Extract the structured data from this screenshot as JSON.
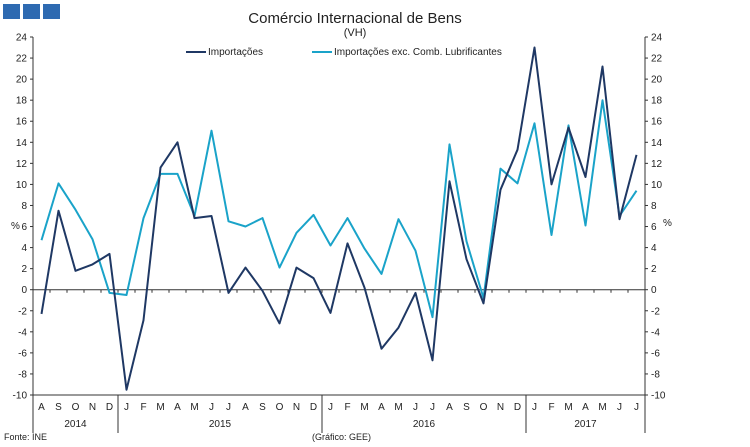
{
  "logo_color": "#2e6ab1",
  "chart_data": {
    "type": "line",
    "title": "Comércio Internacional de Bens",
    "subtitle": "(VH)",
    "ylabel_left": "%",
    "ylabel_right": "%",
    "ylim": [
      -10,
      24
    ],
    "yticks": [
      -10,
      -8,
      -6,
      -4,
      -2,
      0,
      2,
      4,
      6,
      8,
      10,
      12,
      14,
      16,
      18,
      20,
      22,
      24
    ],
    "grid": false,
    "legend_position": "top",
    "categories": [
      "A",
      "S",
      "O",
      "N",
      "D",
      "J",
      "F",
      "M",
      "A",
      "M",
      "J",
      "J",
      "A",
      "S",
      "O",
      "N",
      "D",
      "J",
      "F",
      "M",
      "A",
      "M",
      "J",
      "J",
      "A",
      "S",
      "O",
      "N",
      "D",
      "J",
      "F",
      "M",
      "A",
      "M",
      "J",
      "J"
    ],
    "year_labels": [
      {
        "label": "2014",
        "from": 0,
        "to": 4
      },
      {
        "label": "2015",
        "from": 5,
        "to": 16
      },
      {
        "label": "2016",
        "from": 17,
        "to": 28
      },
      {
        "label": "2017",
        "from": 29,
        "to": 35
      }
    ],
    "series": [
      {
        "name": "Importações",
        "color": "#1f3864",
        "values": [
          -2.3,
          7.5,
          1.8,
          2.4,
          3.4,
          -9.5,
          -2.9,
          11.6,
          14.0,
          6.8,
          7.0,
          -0.3,
          2.1,
          -0.1,
          -3.2,
          2.1,
          1.1,
          -2.2,
          4.4,
          0.2,
          -5.6,
          -3.6,
          -0.3,
          -6.7,
          10.3,
          2.9,
          -1.3,
          9.5,
          13.3,
          23.0,
          10.0,
          15.4,
          10.7,
          21.2,
          6.7,
          12.8
        ]
      },
      {
        "name": "Importações exc. Comb. Lubrificantes",
        "color": "#1aa3c9",
        "values": [
          4.7,
          10.1,
          7.6,
          4.8,
          -0.3,
          -0.5,
          6.8,
          11.0,
          11.0,
          7.0,
          15.1,
          6.5,
          6.0,
          6.8,
          2.1,
          5.4,
          7.1,
          4.2,
          6.8,
          3.9,
          1.5,
          6.7,
          3.7,
          -2.6,
          13.8,
          4.6,
          -0.8,
          11.5,
          10.1,
          15.8,
          5.2,
          15.6,
          6.1,
          18.0,
          7.0,
          9.4
        ]
      }
    ]
  },
  "footer": {
    "source": "Fonte: INE",
    "credit": "(Gráfico: GEE)"
  }
}
